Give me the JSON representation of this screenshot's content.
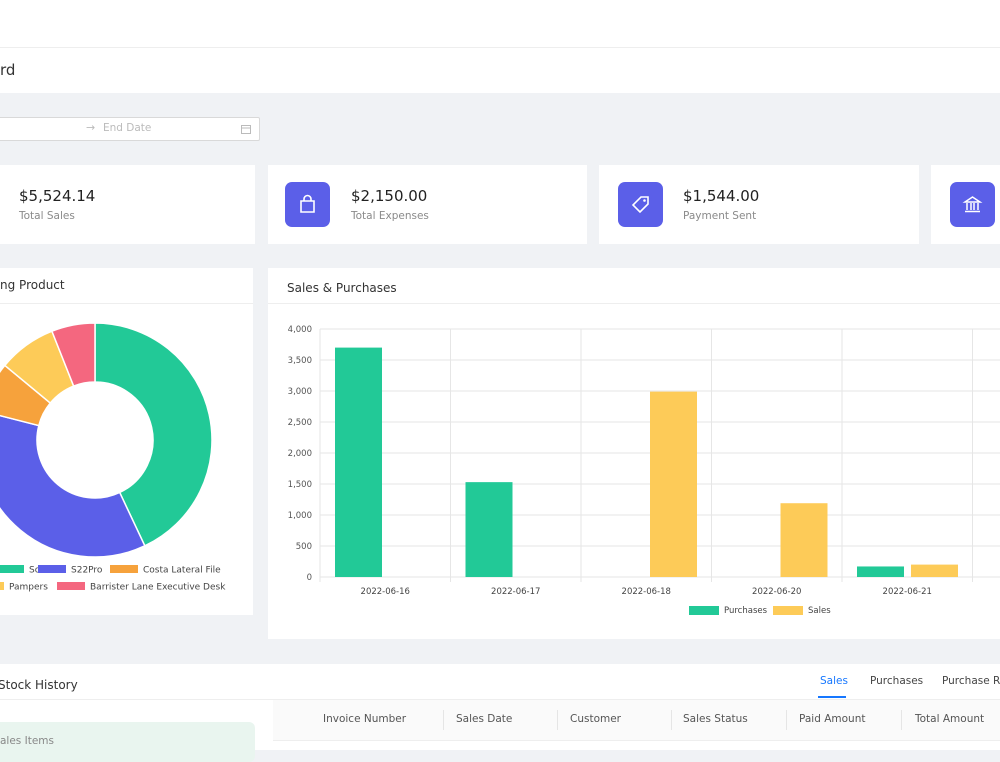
{
  "page_title": "rd",
  "date_filter": {
    "end_placeholder": "End Date"
  },
  "cards": [
    {
      "amount": "$5,524.14",
      "label": "Total Sales"
    },
    {
      "amount": "$2,150.00",
      "label": "Total Expenses"
    },
    {
      "amount": "$1,544.00",
      "label": "Payment Sent"
    }
  ],
  "chart_data": [
    {
      "type": "pie",
      "title": "ng Product",
      "donut": true,
      "categories": [
        "Sofa",
        "S22Pro",
        "Costa Lateral File",
        "Pampers",
        "Barrister Lane Executive Desk"
      ],
      "values": [
        43,
        36,
        7,
        8,
        6
      ],
      "colors": [
        "#22c997",
        "#5b5fe8",
        "#f6a23c",
        "#fdcb58",
        "#f4677f"
      ]
    },
    {
      "type": "bar",
      "title": "Sales & Purchases",
      "categories": [
        "2022-06-16",
        "2022-06-17",
        "2022-06-18",
        "2022-06-20",
        "2022-06-21"
      ],
      "series": [
        {
          "name": "Purchases",
          "color": "#22c997",
          "values": [
            3700,
            1530,
            0,
            0,
            170
          ]
        },
        {
          "name": "Sales",
          "color": "#fdcb58",
          "values": [
            0,
            0,
            2990,
            1190,
            200
          ]
        }
      ],
      "ylim": [
        0,
        4000
      ],
      "yticks": [
        0,
        500,
        {
          "value": 1000,
          "label": "1,000"
        },
        {
          "value": 1500,
          "label": "1,500"
        },
        {
          "value": 2000,
          "label": "2,000"
        },
        {
          "value": 2500,
          "label": "2,500"
        },
        {
          "value": 3000,
          "label": "3,000"
        },
        {
          "value": 3500,
          "label": "3,500"
        },
        {
          "value": 4000,
          "label": "4,000"
        }
      ],
      "grid": true
    }
  ],
  "stock_history": {
    "title": "Stock History",
    "tabs": [
      "Sales",
      "Purchases",
      "Purchase Re"
    ],
    "side_card": "ales Items",
    "columns": [
      "Invoice Number",
      "Sales Date",
      "Customer",
      "Sales Status",
      "Paid Amount",
      "Total Amount"
    ]
  }
}
